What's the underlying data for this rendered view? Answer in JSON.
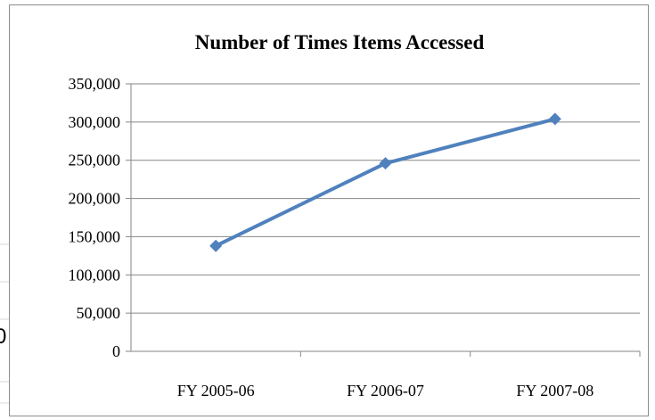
{
  "background_sheet": {
    "fragment_text": "0",
    "grid_color": "#d9d9d9"
  },
  "colors": {
    "series_line": "#4f81bd",
    "gridline": "#868686",
    "axis": "#868686",
    "frame_border": "#8c8c8c"
  },
  "chart_data": {
    "type": "line",
    "title": "Number of Times Items Accessed",
    "xlabel": "",
    "ylabel": "",
    "categories": [
      "FY 2005-06",
      "FY 2006-07",
      "FY 2007-08"
    ],
    "series": [
      {
        "values": [
          138000,
          246000,
          304000
        ],
        "color": "#4f81bd",
        "marker": "diamond"
      }
    ],
    "ylim": [
      0,
      350000
    ],
    "yticks": [
      0,
      50000,
      100000,
      150000,
      200000,
      250000,
      300000,
      350000
    ],
    "ytick_labels": [
      "0",
      "50,000",
      "100,000",
      "150,000",
      "200,000",
      "250,000",
      "300,000",
      "350,000"
    ],
    "grid": true,
    "legend": "none"
  }
}
